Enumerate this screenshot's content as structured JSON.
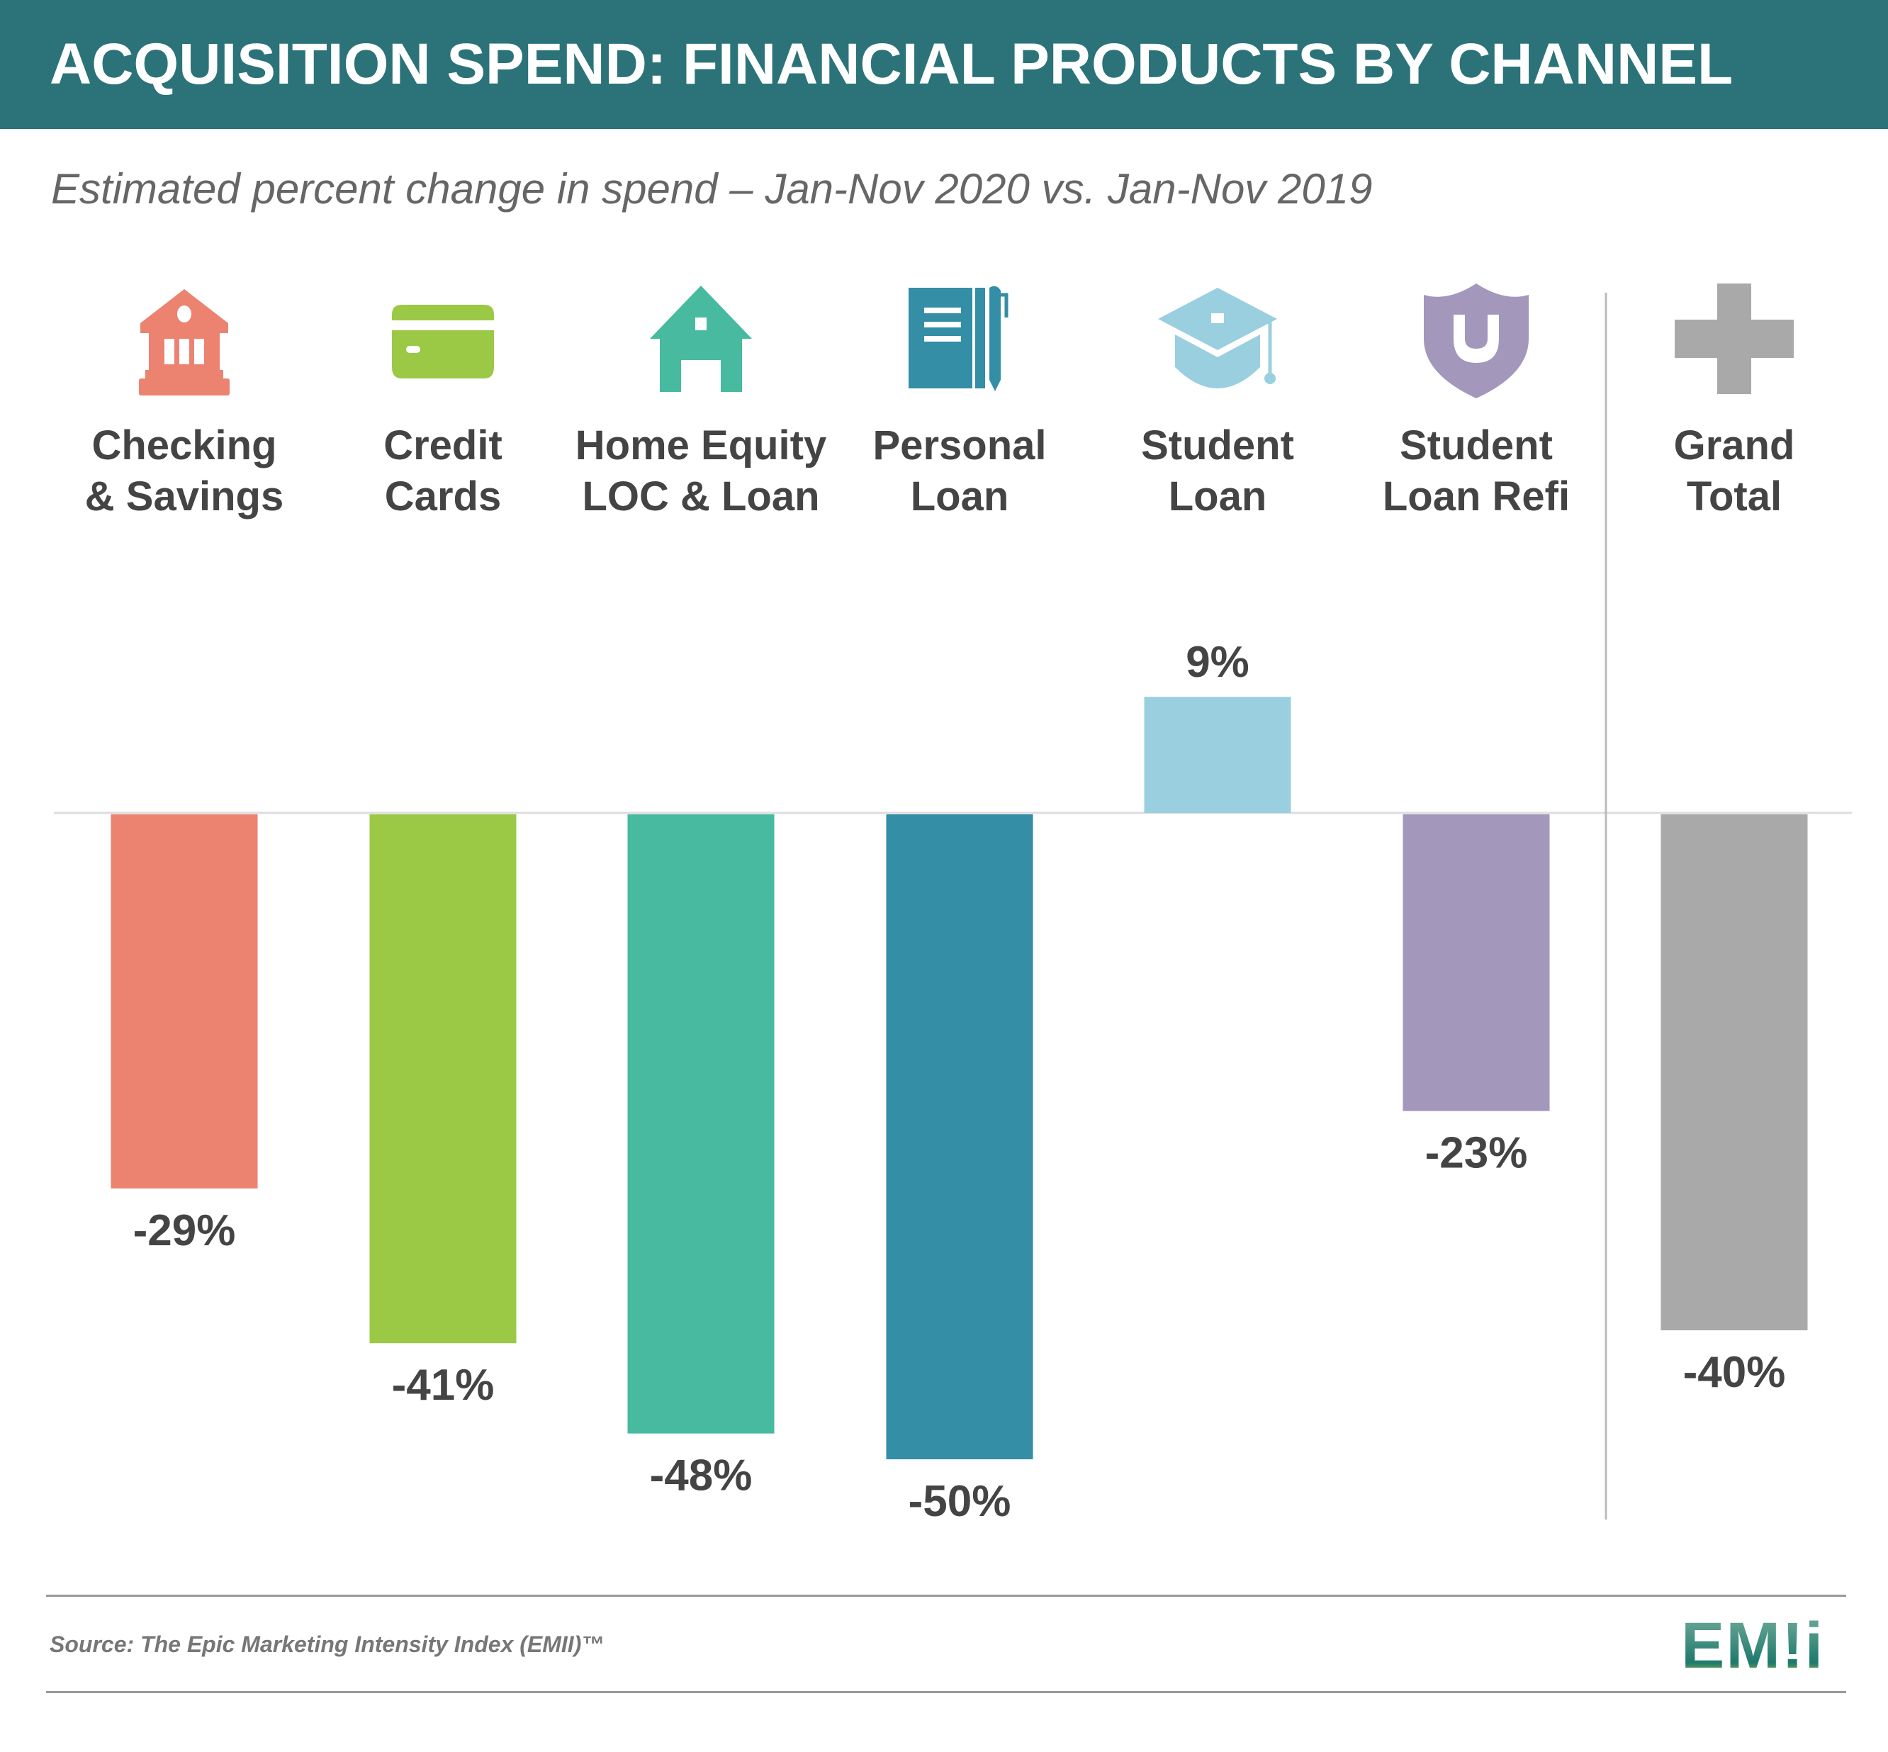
{
  "title": "ACQUISITION SPEND: FINANCIAL PRODUCTS BY CHANNEL",
  "subtitle": "Estimated percent change in spend – Jan-Nov 2020 vs. Jan-Nov 2019",
  "source": "Source: The Epic Marketing Intensity Index (EMII)™",
  "logo": "EM!i",
  "colors": {
    "header": "#2b7379"
  },
  "chart_data": {
    "type": "bar",
    "categories": [
      {
        "lines": [
          "Checking",
          "& Savings"
        ],
        "icon": "bank-icon",
        "color": "#ec8270"
      },
      {
        "lines": [
          "Credit",
          "Cards"
        ],
        "icon": "credit-card-icon",
        "color": "#9bc845"
      },
      {
        "lines": [
          "Home Equity",
          "LOC & Loan"
        ],
        "icon": "house-icon",
        "color": "#47baa0"
      },
      {
        "lines": [
          "Personal",
          "Loan"
        ],
        "icon": "notebook-pen-icon",
        "color": "#338ea6"
      },
      {
        "lines": [
          "Student",
          "Loan"
        ],
        "icon": "graduation-cap-icon",
        "color": "#9acfe0"
      },
      {
        "lines": [
          "Student",
          "Loan Refi"
        ],
        "icon": "shield-icon",
        "color": "#a397bb"
      },
      {
        "lines": [
          "Grand",
          "Total"
        ],
        "icon": "plus-icon",
        "color": "#a9a9a9"
      }
    ],
    "values": [
      -29,
      -41,
      -48,
      -50,
      9,
      -23,
      -40
    ],
    "value_labels": [
      "-29%",
      "-41%",
      "-48%",
      "-50%",
      "9%",
      "-23%",
      "-40%"
    ],
    "unit": "%",
    "grid": false
  }
}
